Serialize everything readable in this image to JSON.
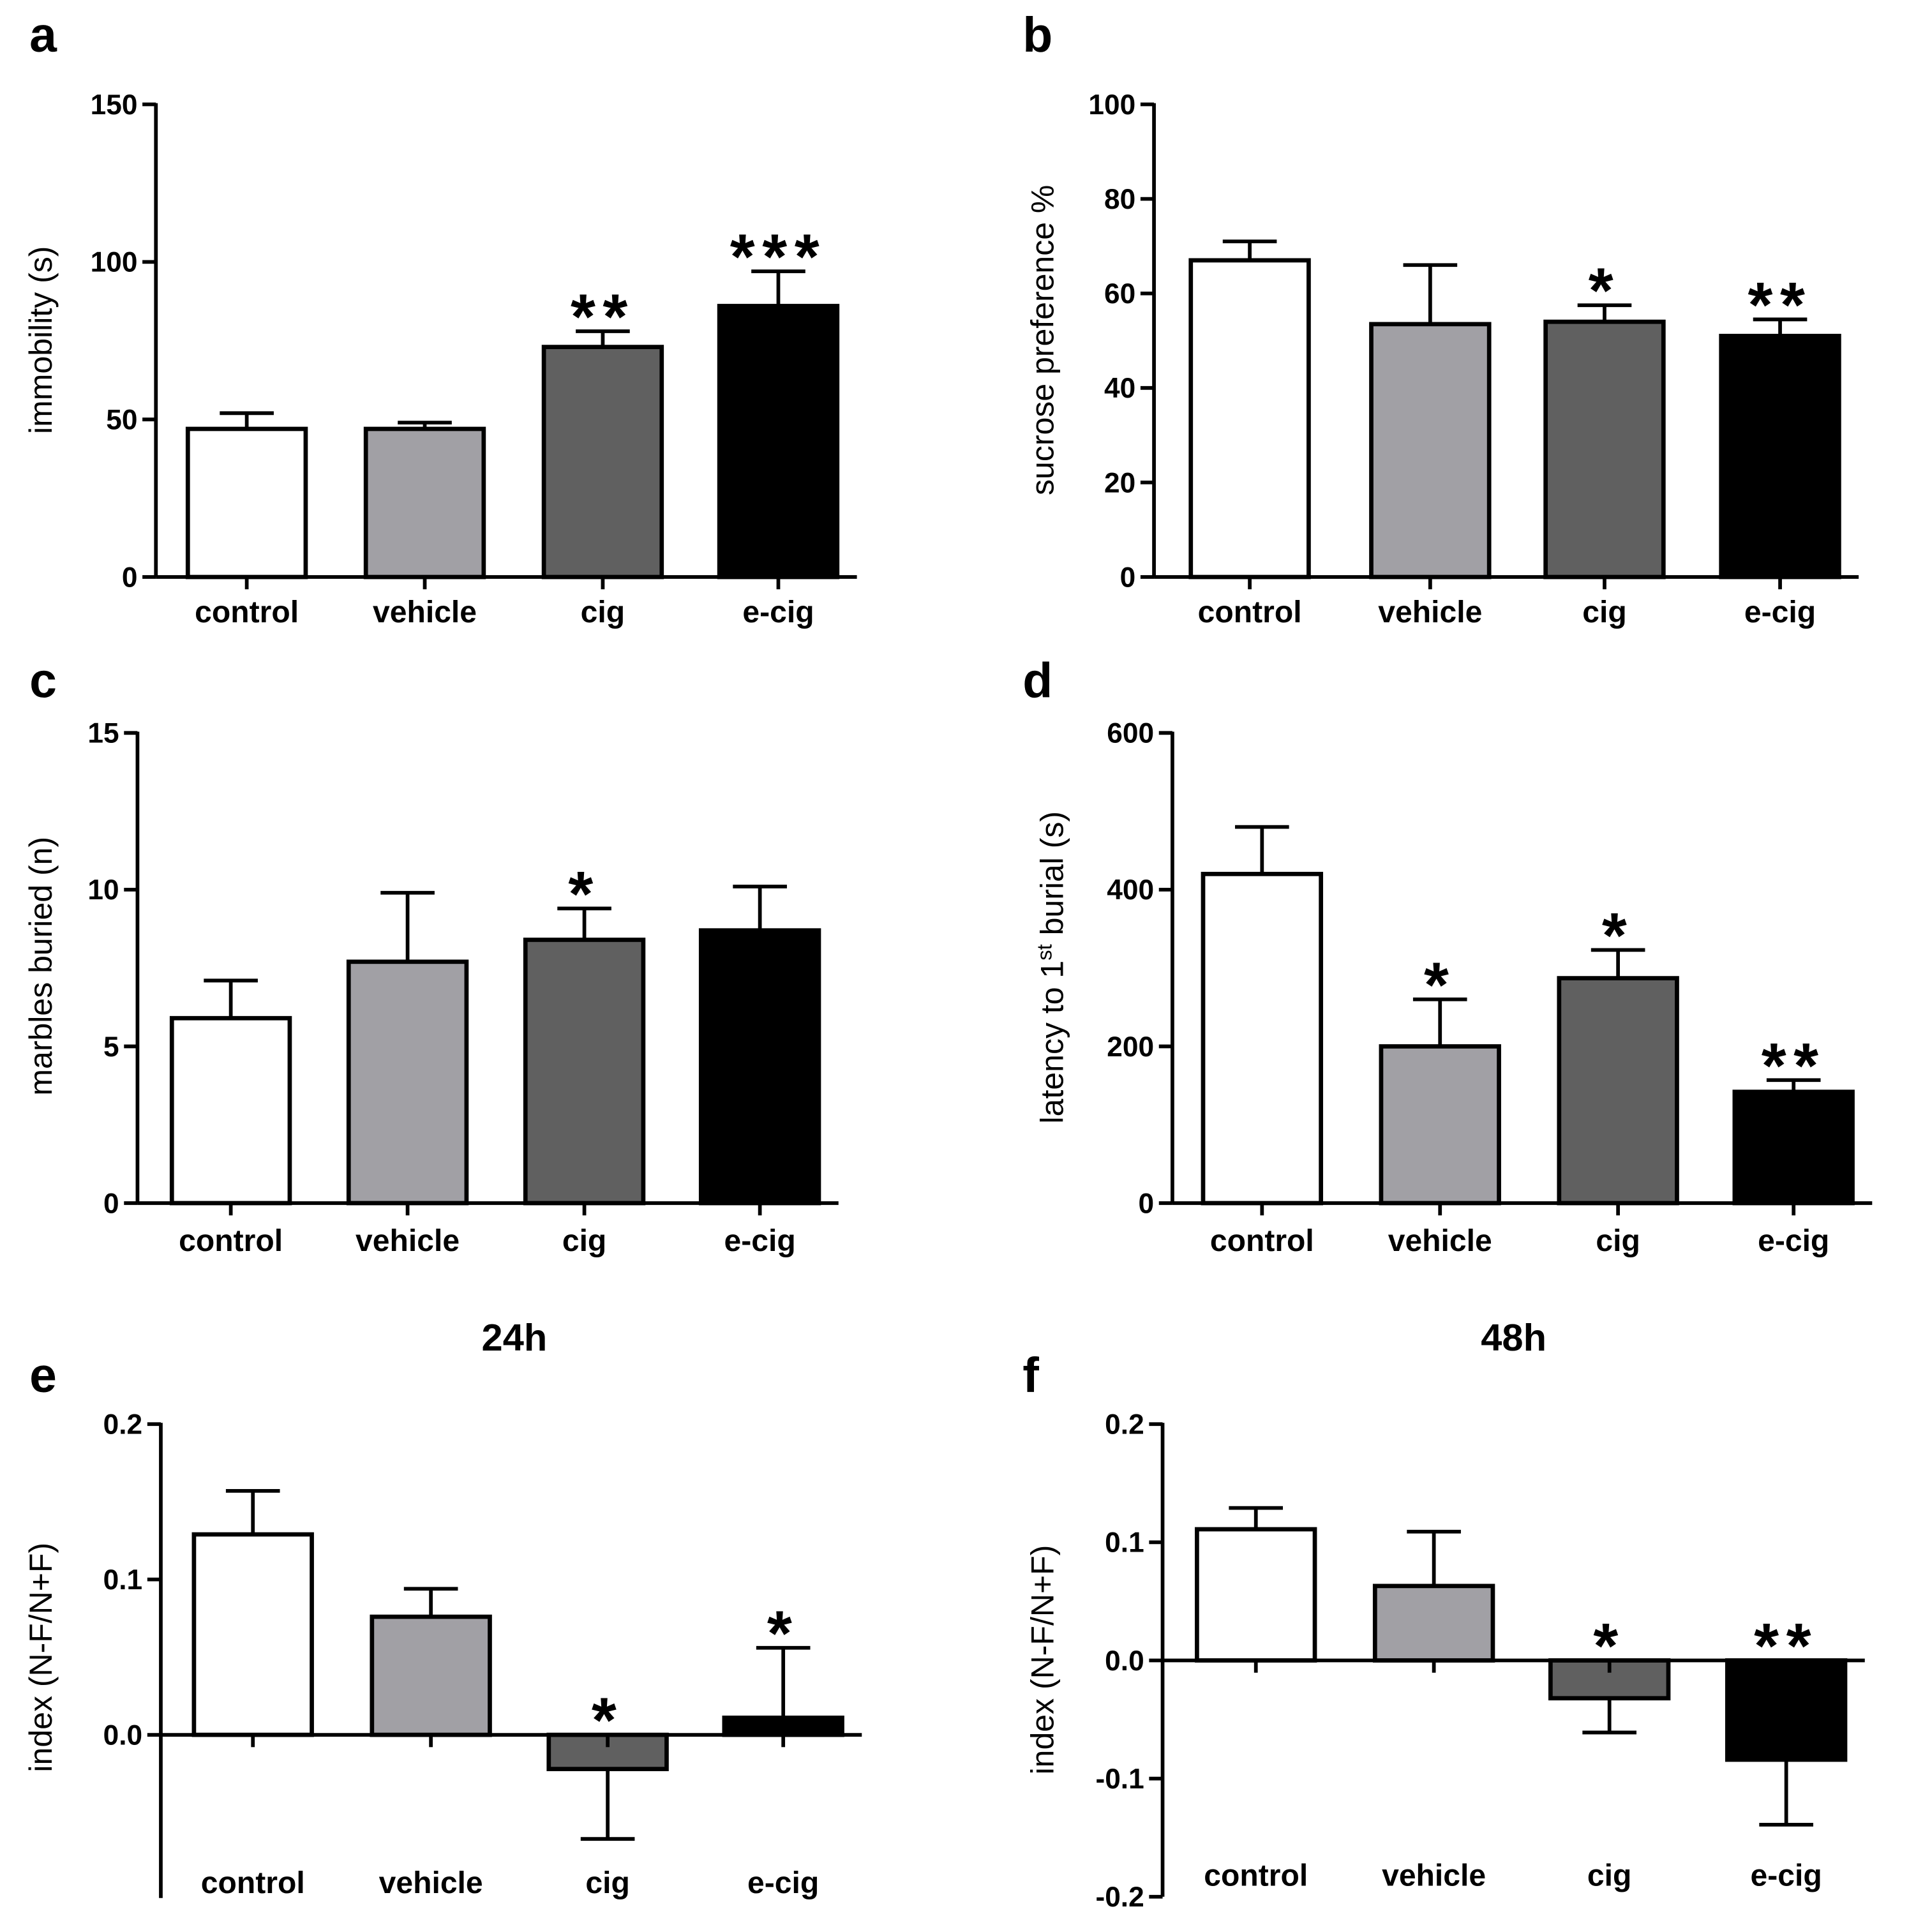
{
  "figure": {
    "colors": {
      "control": "#ffffff",
      "vehicle": "#a1a0a5",
      "cig": "#606060",
      "e_cig": "#000000"
    }
  },
  "chart_data": [
    {
      "id": "a",
      "panel_label": "a",
      "type": "bar",
      "title": "",
      "xlabel": "",
      "ylabel": "immobility (s)",
      "ylim": [
        0,
        150
      ],
      "yticks": [
        0,
        50,
        100,
        150
      ],
      "ytick_labels": [
        "0",
        "50",
        "100",
        "150"
      ],
      "zero_line": false,
      "xlabels_position": "below-axis",
      "categories": [
        "control",
        "vehicle",
        "cig",
        "e-cig"
      ],
      "values": [
        47,
        47,
        73,
        86
      ],
      "errors": [
        5,
        2,
        5,
        11
      ],
      "annotations": [
        "",
        "",
        "**",
        "***"
      ]
    },
    {
      "id": "b",
      "panel_label": "b",
      "type": "bar",
      "title": "",
      "xlabel": "",
      "ylabel": "sucrose preference %",
      "ylim": [
        0,
        100
      ],
      "yticks": [
        0,
        20,
        40,
        60,
        80,
        100
      ],
      "ytick_labels": [
        "0",
        "20",
        "40",
        "60",
        "80",
        "100"
      ],
      "zero_line": false,
      "xlabels_position": "below-axis",
      "categories": [
        "control",
        "vehicle",
        "cig",
        "e-cig"
      ],
      "values": [
        67,
        53.5,
        54,
        51
      ],
      "errors": [
        4,
        12.5,
        3.5,
        3.5
      ],
      "annotations": [
        "",
        "",
        "*",
        "**"
      ]
    },
    {
      "id": "c",
      "panel_label": "c",
      "type": "bar",
      "title": "",
      "xlabel": "",
      "ylabel": "marbles buried (n)",
      "ylim": [
        0,
        15
      ],
      "yticks": [
        0,
        5,
        10,
        15
      ],
      "ytick_labels": [
        "0",
        "5",
        "10",
        "15"
      ],
      "zero_line": false,
      "xlabels_position": "below-axis",
      "categories": [
        "control",
        "vehicle",
        "cig",
        "e-cig"
      ],
      "values": [
        5.9,
        7.7,
        8.4,
        8.7
      ],
      "errors": [
        1.2,
        2.2,
        1.0,
        1.4
      ],
      "annotations": [
        "",
        "",
        "*",
        ""
      ]
    },
    {
      "id": "d",
      "panel_label": "d",
      "type": "bar",
      "title": "",
      "xlabel": "",
      "ylabel": "latency to 1",
      "ylabel_sup": "st",
      "ylabel_suffix": " burial (s)",
      "ylim": [
        0,
        600
      ],
      "yticks": [
        0,
        200,
        400,
        600
      ],
      "ytick_labels": [
        "0",
        "200",
        "400",
        "600"
      ],
      "zero_line": false,
      "xlabels_position": "below-axis",
      "categories": [
        "control",
        "vehicle",
        "cig",
        "e-cig"
      ],
      "values": [
        420,
        200,
        287,
        142
      ],
      "errors": [
        60,
        60,
        36,
        15
      ],
      "annotations": [
        "",
        "*",
        "*",
        "**"
      ]
    },
    {
      "id": "e",
      "panel_label": "e",
      "type": "bar",
      "title": "24h",
      "xlabel": "",
      "ylabel": "index (N-F/N+F)",
      "ylim": [
        -0.105,
        0.2
      ],
      "yticks": [
        0,
        0.1,
        0.2
      ],
      "ytick_labels": [
        "0.0",
        "0.1",
        "0.2"
      ],
      "zero_line": true,
      "xlabels_position": "panel-bottom",
      "categories": [
        "control",
        "vehicle",
        "cig",
        "e-cig"
      ],
      "values": [
        0.129,
        0.076,
        -0.022,
        0.011
      ],
      "errors": [
        0.028,
        0.018,
        0.045,
        0.045
      ],
      "annotations": [
        "",
        "",
        "*",
        "*"
      ]
    },
    {
      "id": "f",
      "panel_label": "f",
      "type": "bar",
      "title": "48h",
      "xlabel": "",
      "ylabel": "index (N-F/N+F)",
      "ylim": [
        -0.2,
        0.2
      ],
      "yticks": [
        -0.2,
        -0.1,
        0,
        0.1,
        0.2
      ],
      "ytick_labels": [
        "-0.2",
        "-0.1",
        "0.0",
        "0.1",
        "0.2"
      ],
      "zero_line": true,
      "xlabels_position": "panel-bottom",
      "categories": [
        "control",
        "vehicle",
        "cig",
        "e-cig"
      ],
      "values": [
        0.111,
        0.063,
        -0.032,
        -0.084
      ],
      "errors": [
        0.018,
        0.046,
        0.029,
        0.055
      ],
      "annotations": [
        "",
        "",
        "*",
        "**"
      ]
    }
  ]
}
